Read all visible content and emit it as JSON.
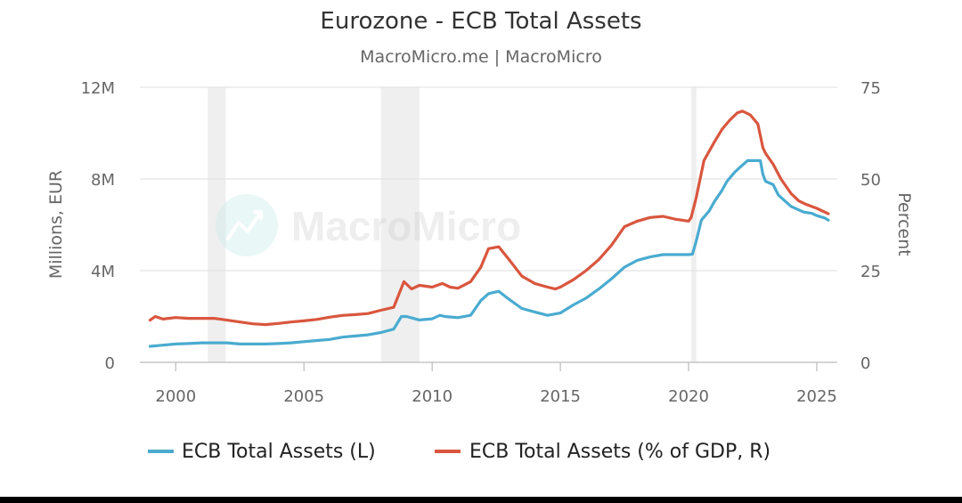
{
  "chart_data": {
    "type": "line",
    "title": "Eurozone - ECB Total Assets",
    "subtitle": "MacroMicro.me | MacroMicro",
    "watermark": "MacroMicro",
    "ylabel_left": "Millions, EUR",
    "ylabel_right": "Percent",
    "x_range": [
      1998.6,
      2025.8
    ],
    "ylim_left": [
      0,
      12
    ],
    "ylim_right": [
      0,
      75
    ],
    "x_ticks": [
      {
        "v": 2000,
        "label": "2000"
      },
      {
        "v": 2005,
        "label": "2005"
      },
      {
        "v": 2010,
        "label": "2010"
      },
      {
        "v": 2015,
        "label": "2015"
      },
      {
        "v": 2020,
        "label": "2020"
      },
      {
        "v": 2025,
        "label": "2025"
      }
    ],
    "y_ticks_left": [
      {
        "v": 0,
        "label": "0"
      },
      {
        "v": 4,
        "label": "4M"
      },
      {
        "v": 8,
        "label": "8M"
      },
      {
        "v": 12,
        "label": "12M"
      }
    ],
    "y_ticks_right": [
      {
        "v": 0,
        "label": "0"
      },
      {
        "v": 25,
        "label": "25"
      },
      {
        "v": 50,
        "label": "50"
      },
      {
        "v": 75,
        "label": "75"
      }
    ],
    "recessions": [
      [
        2001.25,
        2001.95
      ],
      [
        2008.0,
        2009.5
      ],
      [
        2020.1,
        2020.3
      ]
    ],
    "grid": true,
    "legend_position": "bottom",
    "series": [
      {
        "name": "ECB Total Assets (L)",
        "color": "#4aabd0",
        "axis": "left",
        "x": [
          1999.0,
          1999.5,
          2000.0,
          2000.5,
          2001.0,
          2001.5,
          2002.0,
          2002.5,
          2003.0,
          2003.5,
          2004.0,
          2004.5,
          2005.0,
          2005.5,
          2006.0,
          2006.5,
          2007.0,
          2007.5,
          2008.0,
          2008.5,
          2008.8,
          2009.0,
          2009.5,
          2010.0,
          2010.3,
          2010.5,
          2011.0,
          2011.5,
          2011.9,
          2012.2,
          2012.6,
          2013.0,
          2013.5,
          2014.0,
          2014.5,
          2015.0,
          2015.5,
          2016.0,
          2016.5,
          2017.0,
          2017.5,
          2018.0,
          2018.5,
          2019.0,
          2019.5,
          2020.0,
          2020.15,
          2020.3,
          2020.5,
          2020.8,
          2021.0,
          2021.3,
          2021.5,
          2021.8,
          2022.0,
          2022.3,
          2022.5,
          2022.8,
          2022.9,
          2023.0,
          2023.3,
          2023.5,
          2023.8,
          2024.0,
          2024.3,
          2024.5,
          2024.8,
          2025.0,
          2025.3,
          2025.45
        ],
        "values": [
          0.7,
          0.75,
          0.8,
          0.82,
          0.85,
          0.85,
          0.85,
          0.8,
          0.8,
          0.8,
          0.82,
          0.85,
          0.9,
          0.95,
          1.0,
          1.1,
          1.15,
          1.2,
          1.3,
          1.45,
          2.0,
          2.0,
          1.85,
          1.9,
          2.05,
          2.0,
          1.95,
          2.05,
          2.7,
          3.0,
          3.1,
          2.75,
          2.35,
          2.2,
          2.05,
          2.15,
          2.5,
          2.8,
          3.2,
          3.65,
          4.15,
          4.45,
          4.6,
          4.7,
          4.7,
          4.7,
          4.72,
          5.3,
          6.2,
          6.6,
          7.0,
          7.5,
          7.9,
          8.3,
          8.5,
          8.8,
          8.8,
          8.8,
          8.2,
          7.9,
          7.75,
          7.3,
          7.0,
          6.8,
          6.65,
          6.55,
          6.5,
          6.4,
          6.3,
          6.2
        ]
      },
      {
        "name": "ECB Total Assets (% of GDP, R)",
        "color": "#d9563e",
        "axis": "right",
        "x": [
          1999.0,
          1999.2,
          1999.5,
          2000.0,
          2000.5,
          2001.0,
          2001.5,
          2002.0,
          2002.5,
          2003.0,
          2003.5,
          2004.0,
          2004.5,
          2005.0,
          2005.5,
          2006.0,
          2006.5,
          2007.0,
          2007.5,
          2008.0,
          2008.5,
          2008.7,
          2008.9,
          2009.2,
          2009.5,
          2010.0,
          2010.4,
          2010.7,
          2011.0,
          2011.5,
          2011.9,
          2012.2,
          2012.6,
          2013.0,
          2013.5,
          2014.0,
          2014.5,
          2014.8,
          2015.0,
          2015.5,
          2016.0,
          2016.5,
          2017.0,
          2017.5,
          2018.0,
          2018.5,
          2019.0,
          2019.5,
          2020.0,
          2020.1,
          2020.3,
          2020.6,
          2021.0,
          2021.3,
          2021.6,
          2021.9,
          2022.1,
          2022.4,
          2022.7,
          2022.9,
          2023.0,
          2023.3,
          2023.6,
          2024.0,
          2024.3,
          2024.6,
          2025.0,
          2025.3,
          2025.45
        ],
        "values": [
          11.5,
          12.5,
          11.8,
          12.2,
          12.0,
          12.0,
          12.0,
          11.5,
          11.0,
          10.5,
          10.3,
          10.6,
          11.0,
          11.3,
          11.7,
          12.3,
          12.8,
          13.0,
          13.3,
          14.2,
          15.0,
          18.5,
          22.0,
          20.0,
          21.0,
          20.5,
          21.5,
          20.5,
          20.2,
          22.0,
          26.0,
          31.0,
          31.5,
          28.0,
          23.5,
          21.5,
          20.5,
          20.0,
          20.5,
          22.5,
          25.0,
          28.0,
          32.0,
          37.0,
          38.5,
          39.5,
          39.8,
          39.0,
          38.5,
          39.5,
          45.0,
          55.0,
          60.0,
          63.5,
          66.0,
          68.0,
          68.5,
          67.5,
          65.0,
          58.5,
          57.0,
          54.0,
          50.0,
          46.0,
          44.0,
          43.0,
          42.0,
          41.0,
          40.5
        ]
      }
    ]
  }
}
